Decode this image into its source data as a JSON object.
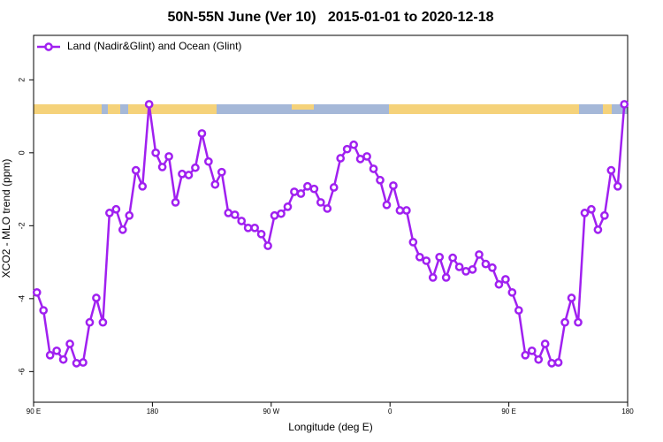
{
  "chart_data": {
    "type": "line",
    "title": "50N-55N June (Ver 10)   2015-01-01 to 2020-12-18",
    "x_label": "Longitude (deg E)",
    "y_label": "XCO2 - MLO trend (ppm)",
    "legend_position": "top-left",
    "xlim": [
      90,
      540
    ],
    "ylim": [
      -6.84,
      3.22
    ],
    "xticks": [
      {
        "value": 90,
        "label": "90 E"
      },
      180,
      {
        "value": 270,
        "label": "90 W"
      },
      {
        "value": 360,
        "label": "0"
      },
      {
        "value": 450,
        "label": "90 E"
      },
      {
        "value": 540,
        "label": "180"
      }
    ],
    "yticks": [
      -6,
      -4,
      -2,
      0,
      2
    ],
    "x": [
      92.5,
      97.5,
      102.5,
      107.5,
      112.5,
      117.5,
      122.5,
      127.5,
      132.5,
      137.5,
      142.5,
      147.5,
      152.5,
      157.5,
      162.5,
      167.5,
      172.5,
      177.5,
      182.5,
      187.5,
      192.5,
      197.5,
      202.5,
      207.5,
      212.5,
      217.5,
      222.5,
      227.5,
      232.5,
      237.5,
      242.5,
      247.5,
      252.5,
      257.5,
      262.5,
      267.5,
      272.5,
      277.5,
      282.5,
      287.5,
      292.5,
      297.5,
      302.5,
      307.5,
      312.5,
      317.5,
      322.5,
      327.5,
      332.5,
      337.5,
      342.5,
      347.5,
      352.5,
      357.5,
      362.5,
      367.5,
      372.5,
      377.5,
      382.5,
      387.5,
      392.5,
      397.5,
      402.5,
      407.5,
      412.5,
      417.5,
      422.5,
      427.5,
      432.5,
      437.5,
      442.5,
      447.5,
      452.5,
      457.5,
      462.5,
      467.5,
      472.5,
      477.5,
      482.5,
      487.5,
      492.5,
      497.5,
      502.5,
      507.5,
      512.5,
      517.5,
      522.5,
      527.5,
      532.5,
      537.5
    ],
    "series": [
      {
        "name": "Land (Nadir&Glint) and Ocean (Glint)",
        "color": "#a020f0",
        "values": [
          -3.83,
          -4.32,
          -5.55,
          -5.43,
          -5.67,
          -5.24,
          -5.77,
          -5.75,
          -4.65,
          -3.98,
          -4.65,
          -1.65,
          -1.55,
          -2.11,
          -1.72,
          -0.48,
          -0.92,
          1.33,
          0.0,
          -0.39,
          -0.1,
          -1.36,
          -0.58,
          -0.61,
          -0.41,
          0.53,
          -0.24,
          -0.87,
          -0.53,
          -1.65,
          -1.7,
          -1.87,
          -2.06,
          -2.06,
          -2.23,
          -2.55,
          -1.72,
          -1.67,
          -1.48,
          -1.07,
          -1.12,
          -0.92,
          -0.99,
          -1.36,
          -1.53,
          -0.95,
          -0.15,
          0.1,
          0.22,
          -0.17,
          -0.1,
          -0.44,
          -0.75,
          -1.43,
          -0.9,
          -1.58,
          -1.58,
          -2.45,
          -2.86,
          -2.96,
          -3.42,
          -2.86,
          -3.42,
          -2.88,
          -3.13,
          -3.25,
          -3.2,
          -2.79,
          -3.05,
          -3.15,
          -3.61,
          -3.47,
          -3.83,
          -4.32,
          -5.55,
          -5.43,
          -5.67,
          -5.24,
          -5.77,
          -5.75,
          -4.65,
          -3.98,
          -4.65,
          -1.65,
          -1.55,
          -2.11,
          -1.72,
          -0.48,
          -0.92,
          1.33
        ]
      }
    ]
  }
}
